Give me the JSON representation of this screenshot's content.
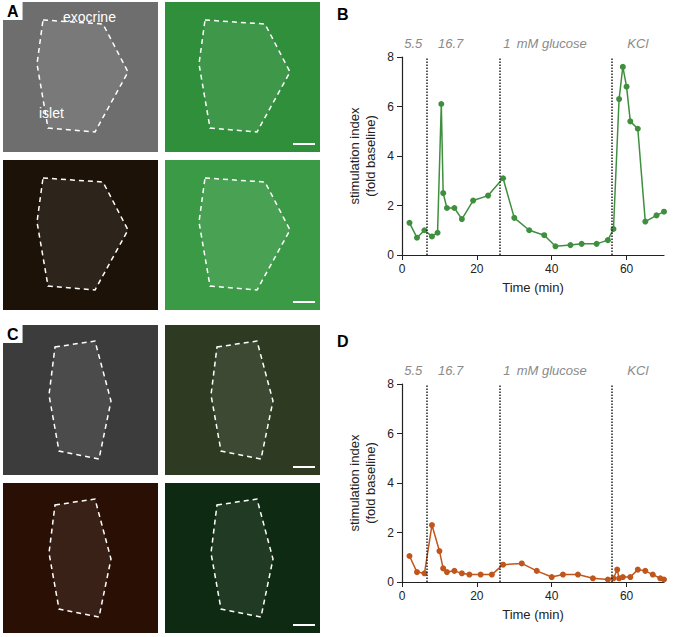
{
  "panels": [
    {
      "label": "A",
      "texts": [
        "exocrine",
        "islet"
      ]
    },
    {
      "label": "C",
      "texts": []
    }
  ],
  "chart_data": [
    {
      "type": "line",
      "title": "B",
      "x_label": "Time (min)",
      "y_label": "stimulation index\n(fold baseline)",
      "xlim": [
        0,
        70
      ],
      "xticks": [
        0,
        20,
        40,
        60
      ],
      "ylim": [
        0,
        8
      ],
      "yticks": [
        0,
        2,
        4,
        6,
        8
      ],
      "grid": false,
      "vlines": [
        6.5,
        26,
        56
      ],
      "annotations": [
        {
          "text": "5.5",
          "x": 3
        },
        {
          "text": "16.7",
          "x": 13
        },
        {
          "text": "1",
          "x": 28
        },
        {
          "text": "mM glucose",
          "x": 40
        },
        {
          "text": "KCl",
          "x": 63
        }
      ],
      "series": [
        {
          "name": "B",
          "color": "#3f8f3f",
          "marker": "circle",
          "line_style": "solid",
          "x": [
            2,
            4,
            6,
            8,
            9.5,
            10.5,
            11,
            12,
            14,
            16,
            19,
            23,
            27,
            30,
            34,
            38,
            41,
            45,
            48,
            52,
            55,
            56.5,
            58,
            59,
            60,
            61,
            63,
            65,
            68,
            70
          ],
          "values": [
            1.3,
            0.7,
            1.0,
            0.75,
            0.9,
            6.1,
            2.5,
            1.9,
            1.9,
            1.45,
            2.2,
            2.4,
            3.1,
            1.5,
            1.0,
            0.8,
            0.35,
            0.4,
            0.45,
            0.45,
            0.6,
            1.05,
            6.3,
            7.6,
            6.8,
            5.4,
            5.1,
            1.35,
            1.6,
            1.75
          ]
        }
      ]
    },
    {
      "type": "line",
      "title": "D",
      "x_label": "Time (min)",
      "y_label": "stimulation index\n(fold baseline)",
      "xlim": [
        0,
        70
      ],
      "xticks": [
        0,
        20,
        40,
        60
      ],
      "ylim": [
        0,
        8
      ],
      "yticks": [
        0,
        2,
        4,
        6,
        8
      ],
      "grid": false,
      "vlines": [
        6.5,
        26,
        56
      ],
      "annotations": [
        {
          "text": "5.5",
          "x": 3
        },
        {
          "text": "16.7",
          "x": 13
        },
        {
          "text": "1",
          "x": 28
        },
        {
          "text": "mM glucose",
          "x": 40
        },
        {
          "text": "KCl",
          "x": 63
        }
      ],
      "series": [
        {
          "name": "D",
          "color": "#c0561c",
          "marker": "circle",
          "line_style": "solid",
          "x": [
            2,
            4,
            6,
            8,
            10,
            11,
            12,
            14,
            16,
            18,
            21,
            24,
            27,
            32,
            36,
            40,
            43,
            47,
            51,
            55,
            56.5,
            57.5,
            58,
            59,
            61,
            63,
            65,
            67,
            69,
            70
          ],
          "values": [
            1.05,
            0.4,
            0.35,
            2.3,
            1.25,
            0.55,
            0.4,
            0.45,
            0.35,
            0.3,
            0.3,
            0.3,
            0.7,
            0.75,
            0.45,
            0.2,
            0.3,
            0.3,
            0.15,
            0.1,
            0.15,
            0.5,
            0.15,
            0.2,
            0.2,
            0.5,
            0.45,
            0.3,
            0.15,
            0.1
          ]
        }
      ]
    }
  ]
}
